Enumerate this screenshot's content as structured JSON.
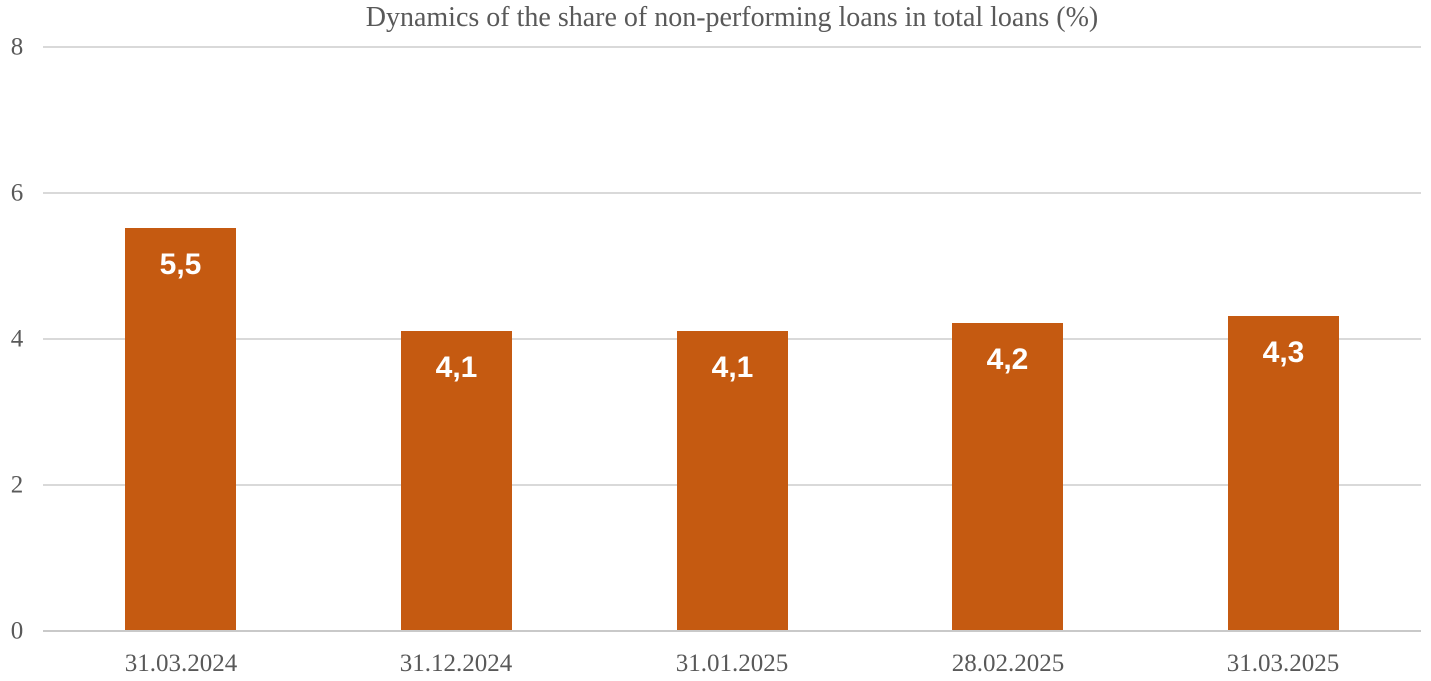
{
  "chart_data": {
    "type": "bar",
    "title": "Dynamics of the share of non-performing loans in total loans (%)",
    "categories": [
      "31.03.2024",
      "31.12.2024",
      "31.01.2025",
      "28.02.2025",
      "31.03.2025"
    ],
    "values": [
      5.5,
      4.1,
      4.1,
      4.2,
      4.3
    ],
    "value_labels": [
      "5,5",
      "4,1",
      "4,1",
      "4,2",
      "4,3"
    ],
    "xlabel": "",
    "ylabel": "",
    "ylim": [
      0,
      8
    ],
    "yticks": [
      0,
      2,
      4,
      6,
      8
    ],
    "grid": true,
    "legend": false,
    "bar_color": "#C55A11",
    "value_label_color": "#FFFFFF",
    "text_color": "#595959",
    "gridline_color": "#D9D9D9",
    "axis_line_color": "#C9C9C9",
    "background_color": "#FFFFFF"
  }
}
